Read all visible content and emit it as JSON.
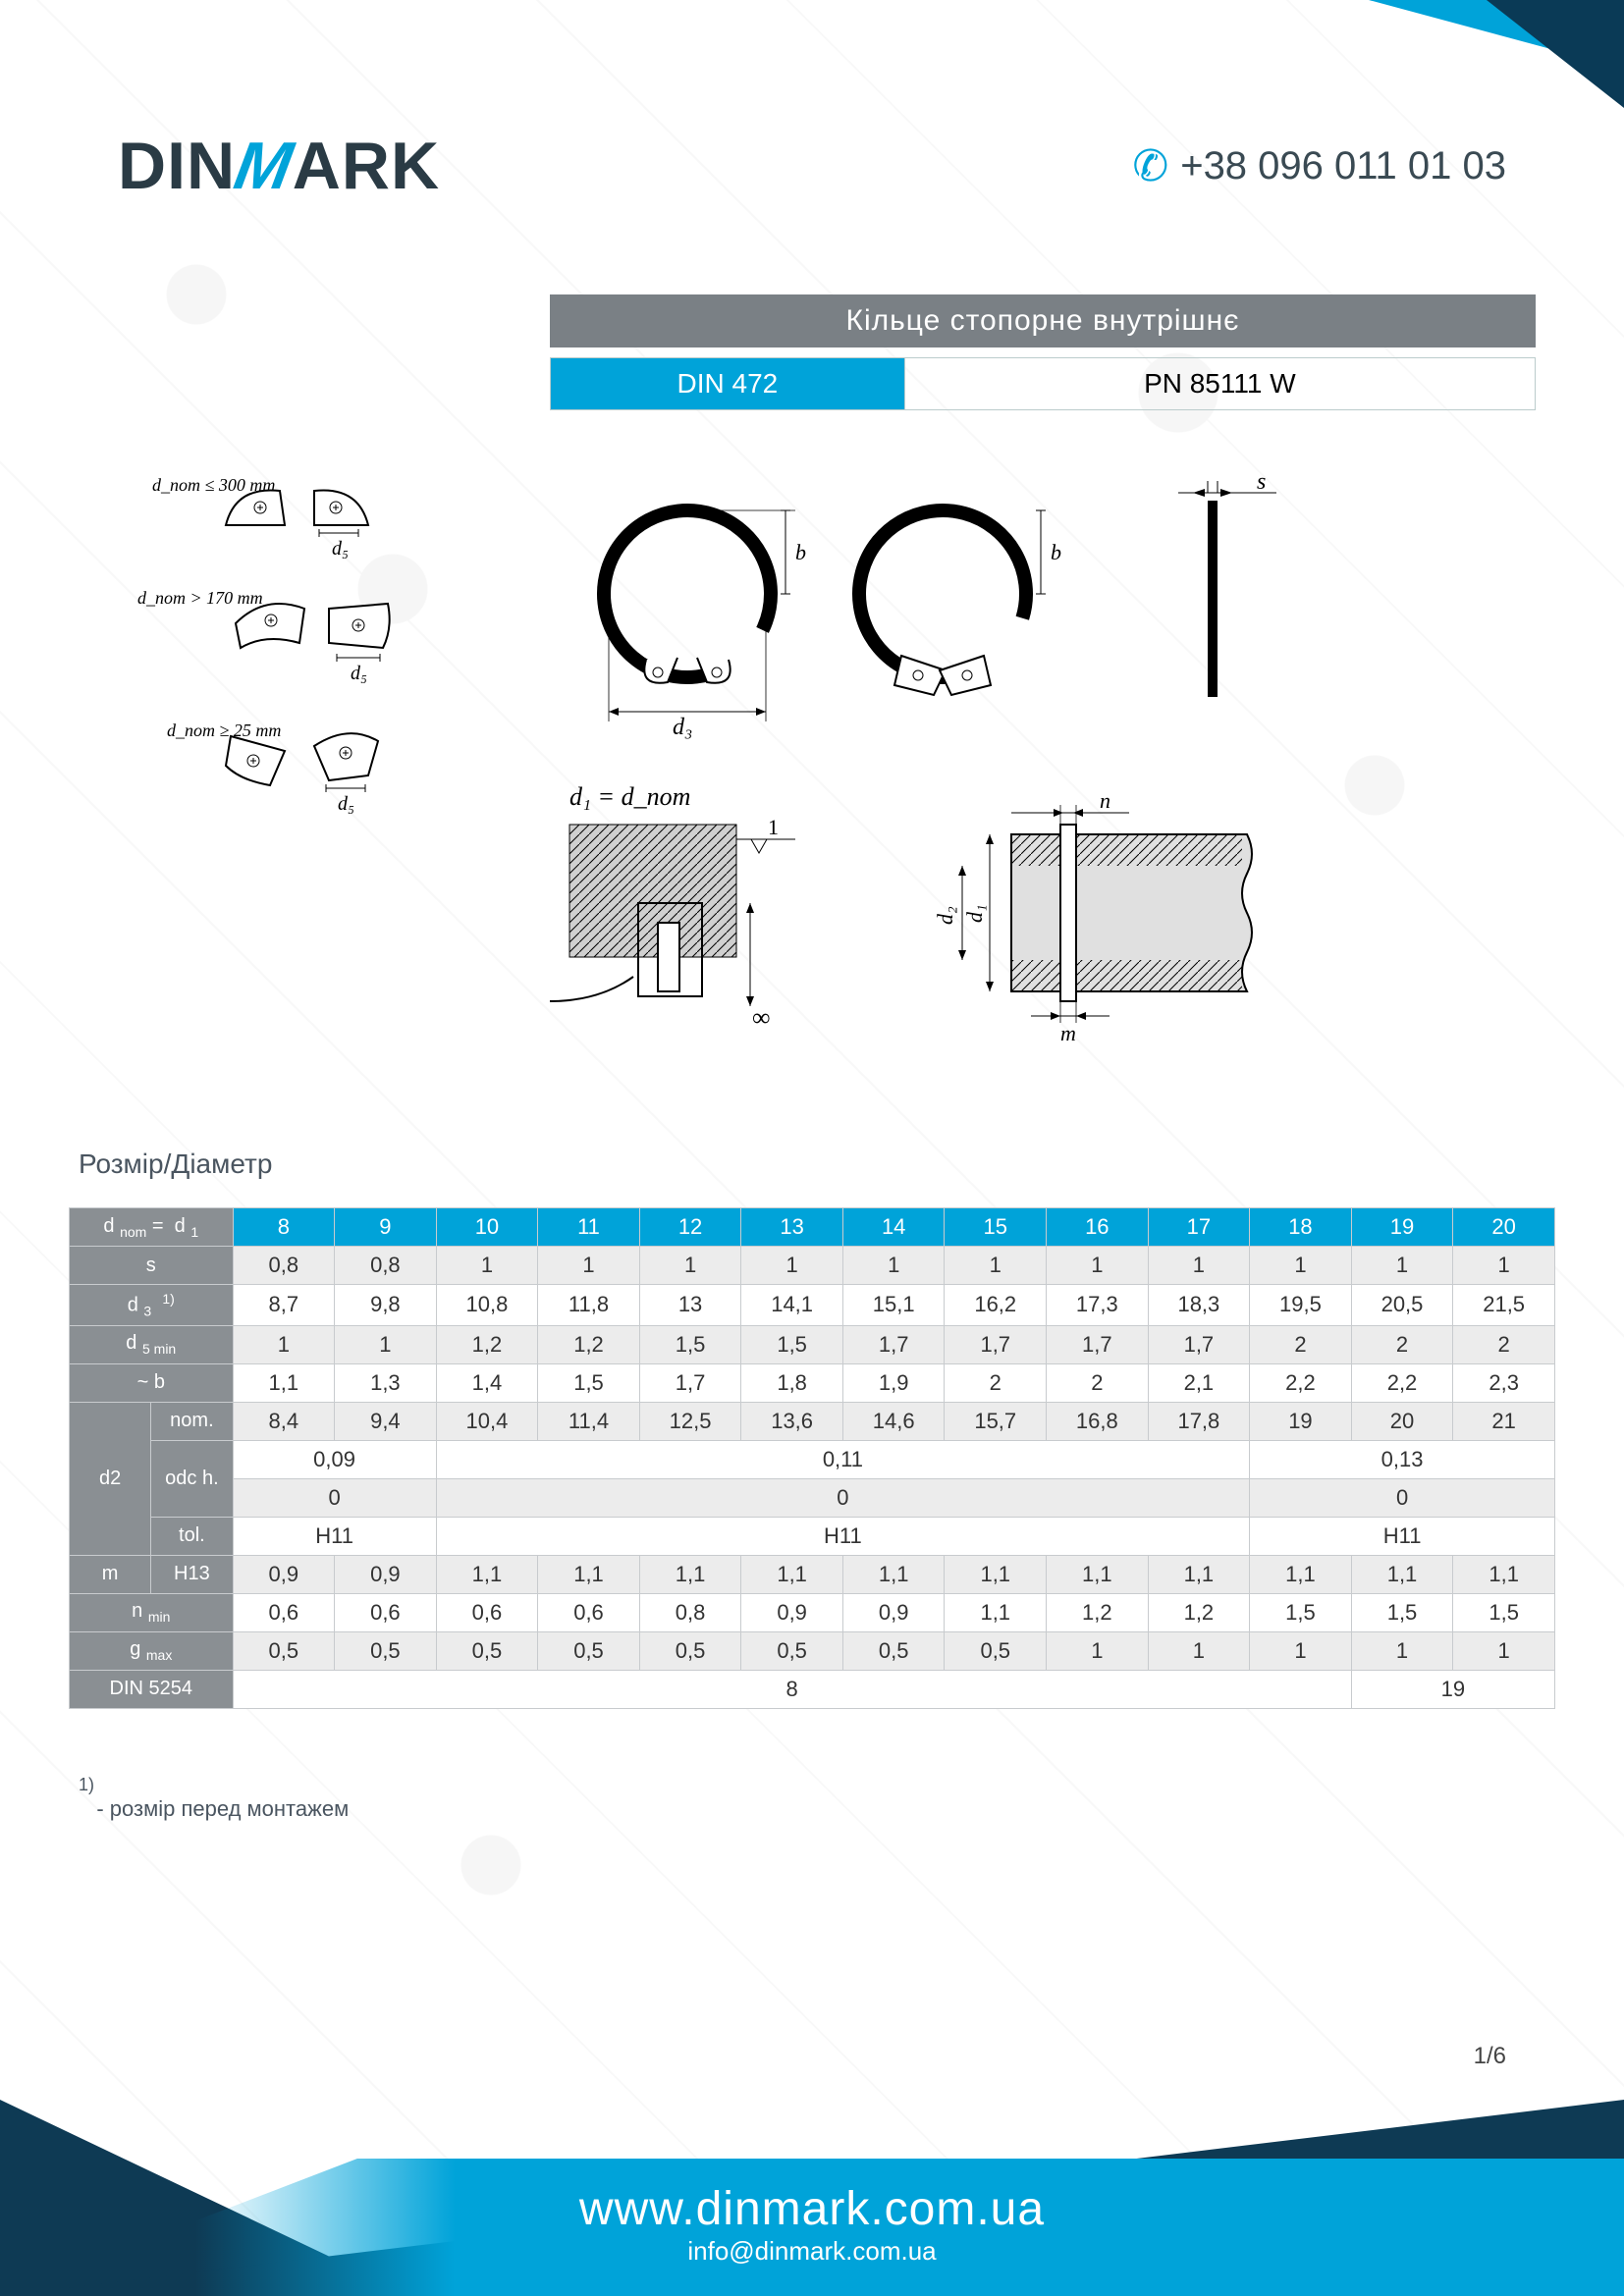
{
  "colors": {
    "accent": "#00a3d9",
    "dark_blue": "#0e3a54",
    "grey_banner": "#7a8085",
    "label_grey": "#8a8f93",
    "shade": "#ececec",
    "border": "#c8cbce",
    "text": "#333333"
  },
  "header": {
    "logo_1": "DIN",
    "logo_slash": "M",
    "logo_2": "ARK",
    "phone": "+38 096 011 01 03"
  },
  "title": "Кільце стопорне внутрішнє",
  "standards": {
    "left": "DIN 472",
    "right": "PN 85111 W"
  },
  "diagram_labels": {
    "cond1": "d_nom ≤ 300 mm",
    "cond2": "d_nom > 170 mm",
    "cond3": "d_nom ≥ 25 mm",
    "d5": "d₅",
    "d3": "d₃",
    "b": "b",
    "s": "s",
    "eq": "d₁ = d_nom",
    "d1": "d₁",
    "d2": "d₂",
    "n": "n",
    "m": "m",
    "one": "1",
    "inf": "∞"
  },
  "size_heading": "Розмір/Діаметр",
  "table": {
    "columns": [
      "8",
      "9",
      "10",
      "11",
      "12",
      "13",
      "14",
      "15",
      "16",
      "17",
      "18",
      "19",
      "20"
    ],
    "rows": {
      "d_nom_d1": {
        "label": "d nom =  d 1"
      },
      "s": {
        "label": "s",
        "cells": [
          "0,8",
          "0,8",
          "1",
          "1",
          "1",
          "1",
          "1",
          "1",
          "1",
          "1",
          "1",
          "1",
          "1"
        ],
        "shade": true
      },
      "d3_1": {
        "label": "d 3   1)",
        "cells": [
          "8,7",
          "9,8",
          "10,8",
          "11,8",
          "13",
          "14,1",
          "15,1",
          "16,2",
          "17,3",
          "18,3",
          "19,5",
          "20,5",
          "21,5"
        ]
      },
      "d5_min": {
        "label": "d 5 min",
        "cells": [
          "1",
          "1",
          "1,2",
          "1,2",
          "1,5",
          "1,5",
          "1,7",
          "1,7",
          "1,7",
          "1,7",
          "2",
          "2",
          "2"
        ],
        "shade": true
      },
      "b": {
        "label": "~ b",
        "cells": [
          "1,1",
          "1,3",
          "1,4",
          "1,5",
          "1,7",
          "1,8",
          "1,9",
          "2",
          "2",
          "2,1",
          "2,2",
          "2,2",
          "2,3"
        ]
      },
      "d2_nom": {
        "sub": "nom.",
        "cells": [
          "8,4",
          "9,4",
          "10,4",
          "11,4",
          "12,5",
          "13,6",
          "14,6",
          "15,7",
          "16,8",
          "17,8",
          "19",
          "20",
          "21"
        ],
        "shade": true
      },
      "d2_odch": {
        "sub": "odc h.",
        "spans": [
          {
            "text": "0,09",
            "span": 2
          },
          {
            "text": "0,11",
            "span": 8
          },
          {
            "text": "0,13",
            "span": 3
          }
        ]
      },
      "d2_odch2": {
        "spans": [
          {
            "text": "0",
            "span": 2
          },
          {
            "text": "0",
            "span": 8
          },
          {
            "text": "0",
            "span": 3
          }
        ],
        "shade": true
      },
      "d2_tol": {
        "sub": "tol.",
        "spans": [
          {
            "text": "H11",
            "span": 2
          },
          {
            "text": "H11",
            "span": 8
          },
          {
            "text": "H11",
            "span": 3
          }
        ]
      },
      "m_h13": {
        "label": "m",
        "sub": "H13",
        "cells": [
          "0,9",
          "0,9",
          "1,1",
          "1,1",
          "1,1",
          "1,1",
          "1,1",
          "1,1",
          "1,1",
          "1,1",
          "1,1",
          "1,1",
          "1,1"
        ],
        "shade": true
      },
      "n_min": {
        "label": "n min",
        "cells": [
          "0,6",
          "0,6",
          "0,6",
          "0,6",
          "0,8",
          "0,9",
          "0,9",
          "1,1",
          "1,2",
          "1,2",
          "1,5",
          "1,5",
          "1,5"
        ]
      },
      "g_max": {
        "label": "g max",
        "cells": [
          "0,5",
          "0,5",
          "0,5",
          "0,5",
          "0,5",
          "0,5",
          "0,5",
          "0,5",
          "1",
          "1",
          "1",
          "1",
          "1"
        ],
        "shade": true
      },
      "din5254": {
        "label": "DIN 5254",
        "spans": [
          {
            "text": "8",
            "span": 11
          },
          {
            "text": "19",
            "span": 2
          }
        ]
      }
    },
    "d2_label": "d2"
  },
  "footnote": {
    "num": "1)",
    "text": "- розмір перед монтажем"
  },
  "page": "1/6",
  "footer": {
    "url": "www.dinmark.com.ua",
    "email": "info@dinmark.com.ua"
  }
}
